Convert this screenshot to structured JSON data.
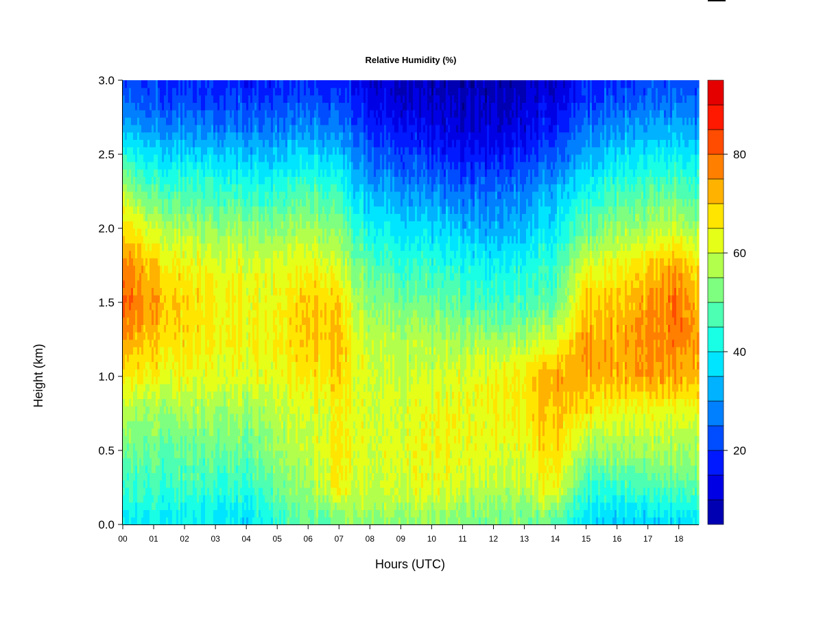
{
  "chart_data": {
    "type": "heatmap",
    "title": "Relative Humidity (%)",
    "xlabel": "Hours (UTC)",
    "ylabel": "Height (km)",
    "xlim": [
      0,
      18.65
    ],
    "ylim": [
      0,
      3.0
    ],
    "x_ticks": [
      "00",
      "01",
      "02",
      "03",
      "04",
      "05",
      "06",
      "07",
      "08",
      "09",
      "10",
      "11",
      "12",
      "13",
      "14",
      "15",
      "16",
      "17",
      "18"
    ],
    "y_ticks": [
      "0.0",
      "0.5",
      "1.0",
      "1.5",
      "2.0",
      "2.5",
      "3.0"
    ],
    "x_tick_values": [
      0,
      1,
      2,
      3,
      4,
      5,
      6,
      7,
      8,
      9,
      10,
      11,
      12,
      13,
      14,
      15,
      16,
      17,
      18
    ],
    "y_tick_values": [
      0,
      0.5,
      1.0,
      1.5,
      2.0,
      2.5,
      3.0
    ],
    "colorbar": {
      "range": [
        5,
        95
      ],
      "ticks": [
        "20",
        "40",
        "60",
        "80"
      ],
      "tick_values": [
        20,
        40,
        60,
        80
      ],
      "levels": [
        5,
        10,
        15,
        20,
        25,
        30,
        35,
        40,
        45,
        50,
        55,
        60,
        65,
        70,
        75,
        80,
        85,
        90,
        95
      ],
      "colors": [
        "#00007F",
        "#0000B2",
        "#0000E5",
        "#0019FF",
        "#004CFF",
        "#007FFF",
        "#00B2FF",
        "#00E5FF",
        "#19FFE5",
        "#4CFFB2",
        "#7FFF7F",
        "#B2FF4C",
        "#E5FF19",
        "#FFE500",
        "#FFB200",
        "#FF7F00",
        "#FF4C00",
        "#FF1900",
        "#E50000",
        "#B20000",
        "#7F0000"
      ]
    },
    "grid": false,
    "heights_km": [
      0.05,
      0.25,
      0.5,
      0.75,
      1.0,
      1.25,
      1.5,
      1.75,
      2.0,
      2.25,
      2.5,
      2.75,
      3.0
    ],
    "hours_utc": [
      0,
      1,
      2,
      3,
      4,
      5,
      6,
      7,
      7.5,
      8,
      9,
      10,
      11,
      12,
      13,
      14,
      15,
      16,
      17,
      18,
      18.6
    ],
    "values": [
      [
        40,
        41,
        40,
        40,
        38,
        45,
        50,
        52,
        55,
        55,
        55,
        54,
        53,
        52,
        52,
        50,
        38,
        36,
        37,
        38,
        40
      ],
      [
        46,
        46,
        45,
        45,
        44,
        50,
        55,
        66,
        60,
        60,
        62,
        62,
        60,
        58,
        58,
        66,
        44,
        44,
        46,
        48,
        50
      ],
      [
        52,
        50,
        50,
        50,
        50,
        55,
        58,
        68,
        62,
        62,
        62,
        64,
        63,
        62,
        62,
        70,
        55,
        55,
        56,
        56,
        56
      ],
      [
        58,
        55,
        55,
        55,
        55,
        58,
        60,
        65,
        62,
        62,
        62,
        63,
        64,
        64,
        66,
        72,
        66,
        62,
        62,
        62,
        62
      ],
      [
        68,
        64,
        63,
        62,
        62,
        63,
        66,
        70,
        63,
        62,
        60,
        60,
        62,
        64,
        66,
        75,
        74,
        72,
        74,
        74,
        72
      ],
      [
        76,
        70,
        67,
        65,
        64,
        65,
        70,
        72,
        62,
        60,
        58,
        57,
        56,
        56,
        57,
        62,
        74,
        72,
        76,
        78,
        74
      ],
      [
        82,
        74,
        68,
        66,
        64,
        64,
        70,
        70,
        58,
        55,
        52,
        50,
        48,
        46,
        46,
        50,
        70,
        70,
        74,
        80,
        72
      ],
      [
        78,
        70,
        64,
        63,
        62,
        61,
        64,
        62,
        52,
        50,
        46,
        44,
        42,
        40,
        42,
        46,
        62,
        64,
        68,
        74,
        66
      ],
      [
        70,
        60,
        56,
        55,
        54,
        53,
        56,
        54,
        44,
        42,
        38,
        36,
        34,
        32,
        34,
        40,
        50,
        54,
        56,
        60,
        55
      ],
      [
        58,
        48,
        46,
        46,
        44,
        44,
        48,
        46,
        36,
        34,
        30,
        28,
        26,
        26,
        28,
        34,
        42,
        46,
        48,
        50,
        46
      ],
      [
        44,
        38,
        36,
        36,
        34,
        34,
        36,
        36,
        28,
        26,
        22,
        18,
        16,
        16,
        18,
        24,
        32,
        36,
        38,
        40,
        38
      ],
      [
        30,
        26,
        25,
        24,
        24,
        24,
        26,
        25,
        20,
        18,
        14,
        11,
        10,
        10,
        12,
        16,
        24,
        26,
        28,
        30,
        28
      ],
      [
        22,
        20,
        18,
        18,
        17,
        17,
        18,
        18,
        14,
        12,
        9,
        7,
        7,
        7,
        8,
        11,
        17,
        19,
        21,
        22,
        21
      ]
    ]
  }
}
